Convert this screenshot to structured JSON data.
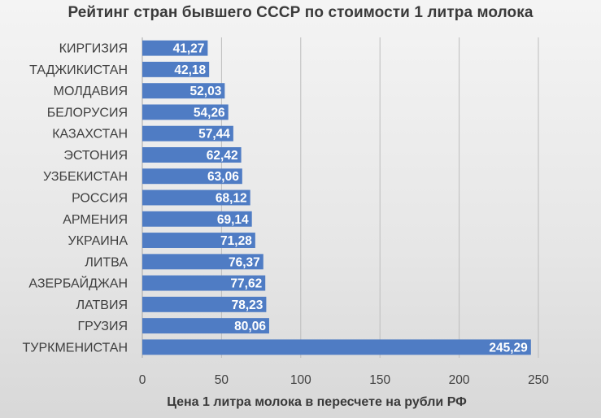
{
  "chart_data": {
    "type": "bar",
    "orientation": "horizontal",
    "title": "Рейтинг стран бывшего СССР по стоимости 1 литра молока",
    "xlabel": "Цена 1 литра молока в пересчете на рубли РФ",
    "ylabel": "",
    "xlim": [
      0,
      250
    ],
    "x_ticks": [
      0,
      50,
      100,
      150,
      200,
      250
    ],
    "grid": true,
    "legend": "none",
    "bar_color": "#4f7cc4",
    "categories": [
      "КИРГИЗИЯ",
      "ТАДЖИКИСТАН",
      "МОЛДАВИЯ",
      "БЕЛОРУСИЯ",
      "КАЗАХСТАН",
      "ЭСТОНИЯ",
      "УЗБЕКИСТАН",
      "РОССИЯ",
      "АРМЕНИЯ",
      "УКРАИНА",
      "ЛИТВА",
      "АЗЕРБАЙДЖАН",
      "ЛАТВИЯ",
      "ГРУЗИЯ",
      "ТУРКМЕНИСТАН"
    ],
    "values": [
      41.27,
      42.18,
      52.03,
      54.26,
      57.44,
      62.42,
      63.06,
      68.12,
      69.14,
      71.28,
      76.37,
      77.62,
      78.23,
      80.06,
      245.29
    ],
    "value_labels": [
      "41,27",
      "42,18",
      "52,03",
      "54,26",
      "57,44",
      "62,42",
      "63,06",
      "68,12",
      "69,14",
      "71,28",
      "76,37",
      "77,62",
      "78,23",
      "80,06",
      "245,29"
    ]
  }
}
